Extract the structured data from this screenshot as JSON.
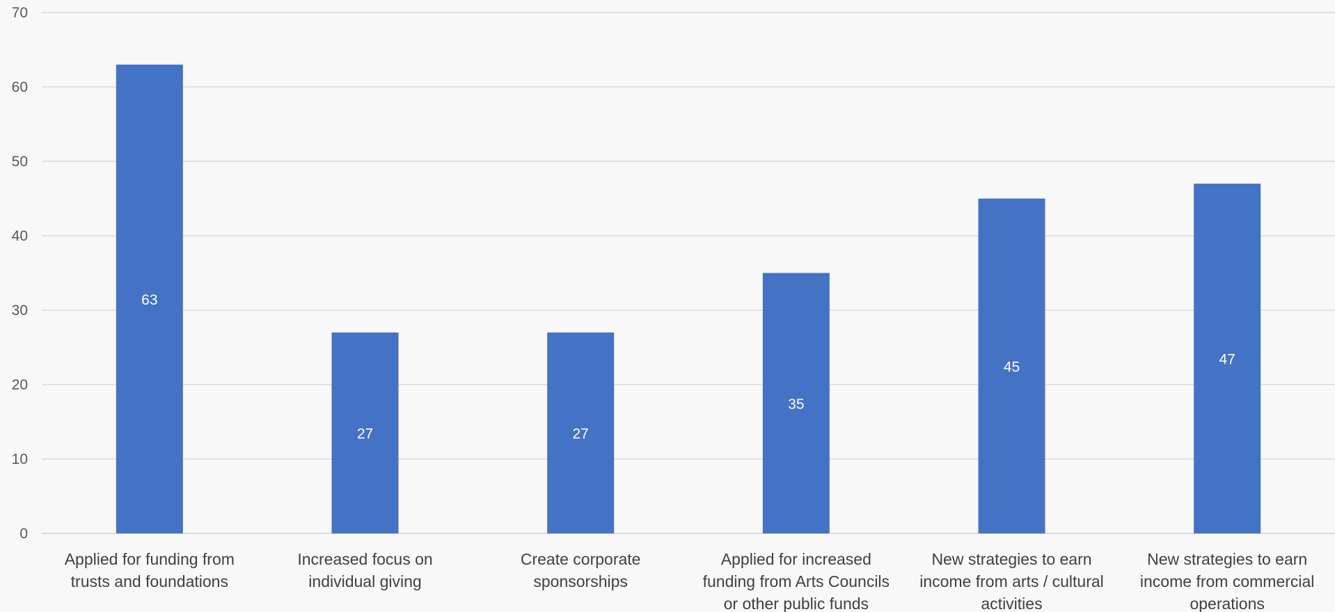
{
  "chart_data": {
    "type": "bar",
    "categories": [
      [
        "Applied for funding from",
        "trusts and foundations"
      ],
      [
        "Increased focus on",
        "individual giving"
      ],
      [
        "Create corporate",
        "sponsorships"
      ],
      [
        "Applied for increased",
        "funding from Arts Councils",
        "or other public funds"
      ],
      [
        "New strategies to earn",
        "income from arts / cultural",
        "activities"
      ],
      [
        "New strategies to earn",
        "income from commercial",
        "operations"
      ]
    ],
    "values": [
      63,
      27,
      27,
      35,
      45,
      47
    ],
    "data_labels": [
      "63",
      "27",
      "27",
      "35",
      "45",
      "47"
    ],
    "title": "",
    "xlabel": "",
    "ylabel": "",
    "ylim": [
      0,
      70
    ],
    "yticks": [
      0,
      10,
      20,
      30,
      40,
      50,
      60,
      70
    ],
    "grid": true,
    "legend": "none",
    "bar_color": "#4472c4",
    "data_label_color": "#ffffff"
  }
}
